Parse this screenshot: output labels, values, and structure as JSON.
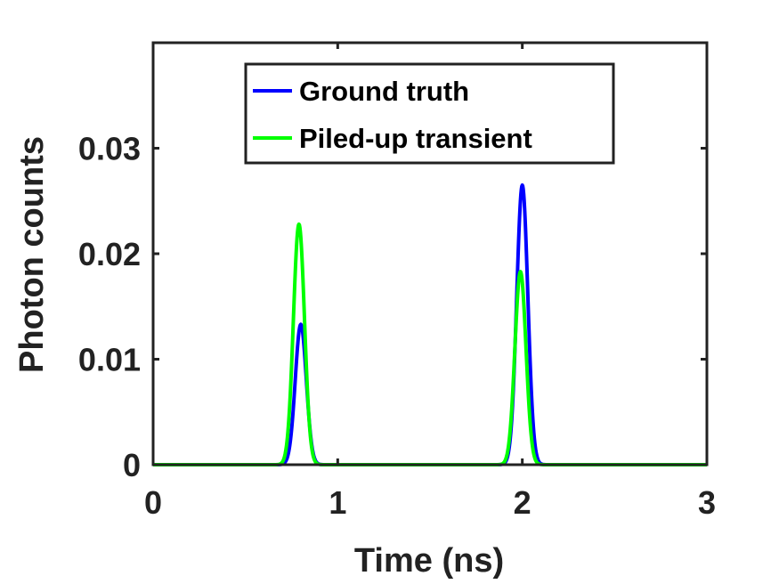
{
  "chart_data": {
    "type": "line",
    "title": "",
    "xlabel": "Time (ns)",
    "ylabel": "Photon counts",
    "xlim": [
      0,
      3
    ],
    "ylim": [
      0,
      0.04
    ],
    "xticks": [
      0,
      1,
      2,
      3
    ],
    "xtick_labels": [
      "0",
      "1",
      "2",
      "3"
    ],
    "yticks": [
      0,
      0.01,
      0.02,
      0.03
    ],
    "ytick_labels": [
      "0",
      "0.01",
      "0.02",
      "0.03"
    ],
    "grid": false,
    "legend_position": "top",
    "series": [
      {
        "name": "Ground truth",
        "color": "#0000ff",
        "peaks": [
          {
            "center": 0.8,
            "height": 0.0133,
            "sigma": 0.03
          },
          {
            "center": 2.0,
            "height": 0.0265,
            "sigma": 0.03
          }
        ]
      },
      {
        "name": "Piled-up transient",
        "color": "#00ff00",
        "peaks": [
          {
            "center": 0.79,
            "height": 0.0228,
            "sigma": 0.03
          },
          {
            "center": 1.99,
            "height": 0.0183,
            "sigma": 0.03
          }
        ]
      }
    ]
  }
}
